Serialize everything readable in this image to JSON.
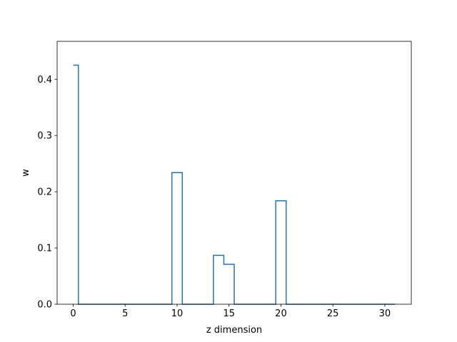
{
  "chart_data": {
    "type": "line",
    "drawstyle": "steps-mid",
    "title": "",
    "xlabel": "z dimension",
    "ylabel": "w",
    "xlim": [
      -1.55,
      32.55
    ],
    "ylim": [
      0.0,
      0.4675
    ],
    "xticks": [
      0,
      5,
      10,
      15,
      20,
      25,
      30
    ],
    "xtick_labels": [
      "0",
      "5",
      "10",
      "15",
      "20",
      "25",
      "30"
    ],
    "yticks": [
      0.0,
      0.1,
      0.2,
      0.3,
      0.4
    ],
    "ytick_labels": [
      "0.0",
      "0.1",
      "0.2",
      "0.3",
      "0.4"
    ],
    "grid": false,
    "series": [
      {
        "color": "#1f77b4",
        "x": [
          0,
          1,
          2,
          3,
          4,
          5,
          6,
          7,
          8,
          9,
          10,
          11,
          12,
          13,
          14,
          15,
          16,
          17,
          18,
          19,
          20,
          21,
          22,
          23,
          24,
          25,
          26,
          27,
          28,
          29,
          30,
          31
        ],
        "values": [
          0.425,
          0,
          0,
          0,
          0,
          0,
          0,
          0,
          0,
          0,
          0.234,
          0,
          0,
          0,
          0.087,
          0.071,
          0,
          0,
          0,
          0,
          0.184,
          0,
          0,
          0,
          0,
          0,
          0,
          0,
          0,
          0,
          0,
          0
        ]
      }
    ]
  }
}
